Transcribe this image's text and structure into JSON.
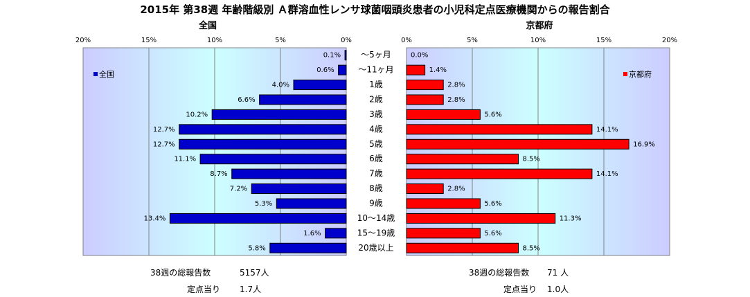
{
  "title": "2015年 第38週 年齢階級別 Ａ群溶血性レンサ球菌咽頭炎患者の小児科定点医療機関からの報告割合",
  "chart_data": [
    {
      "type": "bar",
      "orientation": "horizontal",
      "title": "全国",
      "categories": [
        "～5ヶ月",
        "～11ヶ月",
        "1歳",
        "2歳",
        "3歳",
        "4歳",
        "5歳",
        "6歳",
        "7歳",
        "8歳",
        "9歳",
        "10～14歳",
        "15～19歳",
        "20歳以上"
      ],
      "series": [
        {
          "name": "全国",
          "values": [
            0.1,
            0.6,
            4.0,
            6.6,
            10.2,
            12.7,
            12.7,
            11.1,
            8.7,
            7.2,
            5.3,
            13.4,
            1.6,
            5.8
          ],
          "labels": [
            "0.1%",
            "0.6%",
            "4.0%",
            "6.6%",
            "10.2%",
            "12.7%",
            "12.7%",
            "11.1%",
            "8.7%",
            "7.2%",
            "5.3%",
            "13.4%",
            "1.6%",
            "5.8%"
          ]
        }
      ],
      "xlim": [
        0,
        20
      ],
      "xaxis_reversed": true,
      "ticks": [
        "20%",
        "15%",
        "10%",
        "5%",
        "0%"
      ],
      "legend_position": "top-left",
      "grid": true,
      "colors": {
        "bar": "#0000CC",
        "bar_edge": "#000000",
        "plot_bg_edge": "#ccccff",
        "plot_bg_center": "#ccffff"
      }
    },
    {
      "type": "bar",
      "orientation": "horizontal",
      "title": "京都府",
      "categories": [
        "～5ヶ月",
        "～11ヶ月",
        "1歳",
        "2歳",
        "3歳",
        "4歳",
        "5歳",
        "6歳",
        "7歳",
        "8歳",
        "9歳",
        "10～14歳",
        "15～19歳",
        "20歳以上"
      ],
      "series": [
        {
          "name": "京都府",
          "values": [
            0.0,
            1.4,
            2.8,
            2.8,
            5.6,
            14.1,
            16.9,
            8.5,
            14.1,
            2.8,
            5.6,
            11.3,
            5.6,
            8.5
          ],
          "labels": [
            "0.0%",
            "1.4%",
            "2.8%",
            "2.8%",
            "5.6%",
            "14.1%",
            "16.9%",
            "8.5%",
            "14.1%",
            "2.8%",
            "5.6%",
            "11.3%",
            "5.6%",
            "8.5%"
          ]
        }
      ],
      "xlim": [
        0,
        20
      ],
      "ticks": [
        "0%",
        "5%",
        "10%",
        "15%",
        "20%"
      ],
      "legend_position": "top-right",
      "grid": true,
      "colors": {
        "bar": "#FF0000",
        "bar_edge": "#000000",
        "plot_bg_edge": "#ccccff",
        "plot_bg_center": "#ccffff"
      }
    }
  ],
  "notes": {
    "left": {
      "total_label": "38週の総報告数",
      "total_value": "5157人",
      "per_label": "定点当り",
      "per_value": "1.7人"
    },
    "right": {
      "total_label": "38週の総報告数",
      "total_value": "71 人",
      "per_label": "定点当り",
      "per_value": "1.0人"
    }
  }
}
